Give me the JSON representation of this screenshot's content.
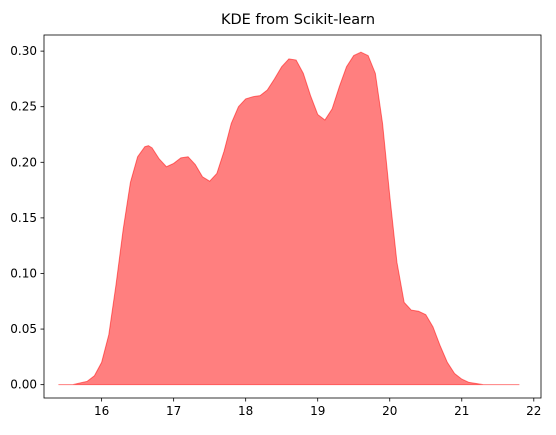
{
  "chart_data": {
    "type": "area",
    "title": "KDE from Scikit-learn",
    "xlabel": "",
    "ylabel": "",
    "xlim": [
      15.2,
      22.1
    ],
    "ylim": [
      -0.012,
      0.3145
    ],
    "x_ticks": [
      16,
      17,
      18,
      19,
      20,
      21,
      22
    ],
    "x_tick_labels": [
      "16",
      "17",
      "18",
      "19",
      "20",
      "21",
      "22"
    ],
    "y_ticks": [
      0.0,
      0.05,
      0.1,
      0.15,
      0.2,
      0.25,
      0.3
    ],
    "y_tick_labels": [
      "0.00",
      "0.05",
      "0.10",
      "0.15",
      "0.20",
      "0.25",
      "0.30"
    ],
    "grid": false,
    "legend": "none",
    "fill_color": "#ff0000",
    "fill_opacity": 0.5,
    "x": [
      15.4,
      15.6,
      15.8,
      15.9,
      16.0,
      16.1,
      16.2,
      16.3,
      16.4,
      16.5,
      16.6,
      16.65,
      16.7,
      16.8,
      16.9,
      17.0,
      17.1,
      17.2,
      17.3,
      17.4,
      17.5,
      17.6,
      17.7,
      17.8,
      17.9,
      18.0,
      18.1,
      18.2,
      18.3,
      18.4,
      18.5,
      18.6,
      18.7,
      18.8,
      18.9,
      19.0,
      19.1,
      19.2,
      19.3,
      19.4,
      19.5,
      19.6,
      19.7,
      19.8,
      19.9,
      20.0,
      20.1,
      20.2,
      20.3,
      20.4,
      20.5,
      20.6,
      20.7,
      20.8,
      20.9,
      21.0,
      21.1,
      21.2,
      21.3,
      21.4,
      21.6,
      21.8
    ],
    "y": [
      0.0,
      0.0,
      0.003,
      0.008,
      0.02,
      0.045,
      0.09,
      0.14,
      0.182,
      0.205,
      0.214,
      0.215,
      0.213,
      0.203,
      0.196,
      0.199,
      0.204,
      0.205,
      0.198,
      0.187,
      0.183,
      0.19,
      0.21,
      0.235,
      0.25,
      0.257,
      0.259,
      0.26,
      0.265,
      0.275,
      0.286,
      0.293,
      0.292,
      0.28,
      0.26,
      0.243,
      0.238,
      0.248,
      0.268,
      0.286,
      0.296,
      0.299,
      0.296,
      0.28,
      0.235,
      0.17,
      0.11,
      0.074,
      0.067,
      0.066,
      0.063,
      0.052,
      0.035,
      0.02,
      0.01,
      0.005,
      0.002,
      0.001,
      0.0,
      0.0,
      0.0,
      0.0
    ]
  }
}
